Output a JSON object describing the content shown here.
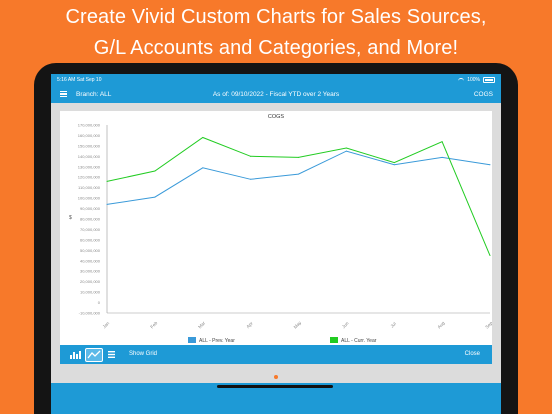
{
  "promo": {
    "line1": "Create Vivid Custom Charts for Sales Sources,",
    "line2": "G/L Accounts and Categories, and More!"
  },
  "statusbar": {
    "time": "5:16 AM   Sat Sep 10",
    "battery": "100%"
  },
  "navbar": {
    "branch": "Branch: ALL",
    "as_of": "As of: 09/10/2022 - Fiscal YTD over 2 Years",
    "cogs_button": "COGS"
  },
  "toolbar": {
    "show_grid": "Show Grid",
    "close": "Close"
  },
  "icons": [
    "menu-icon",
    "wifi-icon",
    "battery-icon",
    "bar-chart-icon",
    "line-chart-icon",
    "table-icon"
  ],
  "colors": {
    "accent": "#1e9ad6",
    "background": "#f7792a",
    "prev_series": "#3a9ad9",
    "curr_series": "#22cc22"
  },
  "chart_data": {
    "type": "line",
    "title": "COGS",
    "ylabel": "$",
    "ylim": [
      -10000000,
      170000000
    ],
    "yticks": [
      170000000,
      160000000,
      150000000,
      140000000,
      130000000,
      120000000,
      110000000,
      100000000,
      90000000,
      80000000,
      70000000,
      60000000,
      50000000,
      40000000,
      30000000,
      20000000,
      10000000,
      0,
      -10000000
    ],
    "ytick_labels": [
      "170,000,000",
      "160,000,000",
      "150,000,000",
      "140,000,000",
      "130,000,000",
      "120,000,000",
      "110,000,000",
      "100,000,000",
      "90,000,000",
      "80,000,000",
      "70,000,000",
      "60,000,000",
      "50,000,000",
      "40,000,000",
      "30,000,000",
      "20,000,000",
      "10,000,000",
      "0",
      "-10,000,000"
    ],
    "categories": [
      "Jan",
      "Feb",
      "Mar",
      "Apr",
      "May",
      "Jun",
      "Jul",
      "Aug",
      "Sep"
    ],
    "series": [
      {
        "name": "ALL - Prev. Year",
        "color": "#3a9ad9",
        "values": [
          94000000,
          101000000,
          129000000,
          118000000,
          123000000,
          145000000,
          132000000,
          139000000,
          132000000
        ]
      },
      {
        "name": "ALL - Curr. Year",
        "color": "#22cc22",
        "values": [
          116000000,
          126000000,
          158000000,
          140000000,
          139000000,
          148000000,
          134000000,
          154000000,
          45000000
        ]
      }
    ],
    "grid": false,
    "legend": "bottom"
  }
}
